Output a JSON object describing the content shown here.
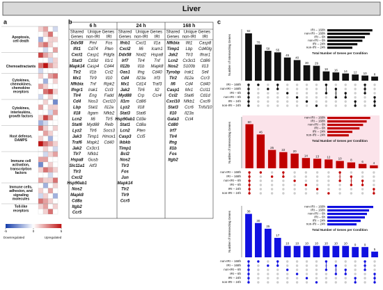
{
  "header": {
    "title": "Liver"
  },
  "panels": {
    "a": "a",
    "b": "b",
    "c": "c"
  },
  "heatmap": {
    "groups": [
      {
        "label": "Apoptosis, cell death",
        "rows": 5
      },
      {
        "label": "Chemoattractants",
        "rows": 4
      },
      {
        "label": "Cytokines, chemokines, chemokine receptors",
        "rows": 5
      },
      {
        "label": "Cytokines, interleukins, growth factors",
        "rows": 5
      },
      {
        "label": "Host defense, DAMPS",
        "rows": 5
      },
      {
        "label": "Immune cell activation, transcription factors",
        "rows": 6
      },
      {
        "label": "Immune cells, adhesion, and signaling molecules",
        "rows": 4
      },
      {
        "label": "Toll-like receptors",
        "rows": 2
      }
    ],
    "values": [
      [
        1,
        2,
        0,
        -1
      ],
      [
        0,
        1,
        3,
        0
      ],
      [
        -2,
        0,
        1,
        1
      ],
      [
        2,
        3,
        1,
        0
      ],
      [
        0,
        -1,
        0,
        2
      ],
      [
        4,
        2,
        1,
        0
      ],
      [
        0,
        0,
        -1,
        1
      ],
      [
        3,
        5,
        2,
        1
      ],
      [
        -1,
        0,
        0,
        0
      ],
      [
        1,
        0,
        2,
        3
      ],
      [
        0,
        -2,
        0,
        1
      ],
      [
        2,
        1,
        0,
        0
      ],
      [
        0,
        3,
        4,
        1
      ],
      [
        -1,
        0,
        1,
        0
      ],
      [
        0,
        1,
        0,
        -3
      ],
      [
        2,
        0,
        1,
        1
      ],
      [
        0,
        0,
        -1,
        2
      ],
      [
        1,
        4,
        2,
        0
      ],
      [
        -2,
        -1,
        0,
        0
      ],
      [
        3,
        1,
        0,
        1
      ],
      [
        0,
        2,
        1,
        0
      ],
      [
        1,
        0,
        -2,
        0
      ],
      [
        5,
        3,
        2,
        1
      ],
      [
        0,
        1,
        0,
        -1
      ],
      [
        0,
        -1,
        1,
        2
      ],
      [
        2,
        2,
        0,
        0
      ],
      [
        -3,
        0,
        1,
        0
      ],
      [
        1,
        3,
        2,
        1
      ],
      [
        0,
        0,
        -1,
        0
      ],
      [
        2,
        1,
        1,
        3
      ],
      [
        0,
        -2,
        0,
        1
      ],
      [
        1,
        0,
        2,
        0
      ],
      [
        -1,
        1,
        0,
        -2
      ],
      [
        3,
        2,
        1,
        0
      ],
      [
        1,
        2,
        0,
        1
      ],
      [
        0,
        1,
        3,
        0
      ]
    ],
    "colorbar": {
      "range": [
        -5,
        5
      ],
      "ticks": [
        -5,
        0,
        5
      ]
    },
    "low_label": "Downregulated",
    "high_label": "Upregulated"
  },
  "table": {
    "timepoints": [
      "6 h",
      "24 h",
      "168 h"
    ],
    "sub1": [
      "Shared",
      "Unique Genes"
    ],
    "sub2": [
      "Genes",
      "non-IRI",
      "IRI"
    ],
    "columns": [
      [
        "Ddx58",
        "Ifit1",
        "Cxcl1",
        "Stat3",
        "Mapk14",
        "Tlr2",
        "Mx1",
        "Nfkbia",
        "Ifngr1",
        "Tlr4",
        "Cd4",
        "Lbp",
        "Il18",
        "Lcn2",
        "Stat6",
        "Lyz2",
        "Jak3",
        "Traf6",
        "Jak2",
        "Tlr7",
        "Hspa8",
        "Slc11a1",
        "Tlr3",
        "Cxcl2",
        "Hsp90ab1",
        "Nos2",
        "Mapk8",
        "Cd8a",
        "Itgb2",
        "Ccr5"
      ],
      [
        "Pml",
        "Cd74",
        "Casp1",
        "Cd3d",
        "Casp4",
        "Il1b",
        "Tlr9",
        "Tnf",
        "Irak1",
        "Eng",
        "Nos3",
        "Stat1",
        "Itgam",
        "Il6",
        "Myd88",
        "Tlr6",
        "Timp1",
        "Mapk1",
        "Cx3cr1",
        "Nfkb1",
        "Gusb",
        "Atf3"
      ],
      [
        "Fos",
        "Pten",
        "Pdgfa",
        "Il1r1",
        "Cd44",
        "Ccl2",
        "Il10",
        "Ripk2",
        "Ccl3",
        "Fadd",
        "Cxcl10",
        "Il12a",
        "Nfkb2",
        "Tlr5",
        "Relb",
        "Socs3",
        "Hmox1",
        "Cd40"
      ],
      [
        "Ifnb1",
        "Cxcl2",
        "Ddx58",
        "Irf7",
        "Il12b",
        "Oas1",
        "Cd4",
        "Mx1",
        "Jak2",
        "Myd88",
        "Il1rn",
        "Lyz2",
        "Stat3",
        "Hsp90ab1",
        "Stat1",
        "Lcn2",
        "Casp3",
        "Ikbkb",
        "Timp1",
        "Bcl2",
        "Nos2",
        "Tlr3",
        "Fos",
        "Jun",
        "Mapk14",
        "Tlr2",
        "Tlr9",
        "Ccr5"
      ],
      [
        "Cxcl1",
        "Il6",
        "Nod2",
        "Tlr4",
        "Il1b",
        "Ifng",
        "Il23a",
        "Cd14",
        "Tlr6",
        "Crp",
        "Cd86",
        "Il18",
        "Stat6",
        "Cd3e",
        "Cd8a",
        "Pten",
        "Ccl5"
      ],
      [
        "Il1a",
        "Icam1",
        "Hspa8",
        "Tnf",
        "Mapk8",
        "Cd40",
        "Irf3",
        "Traf3",
        "Il2",
        "Ccr4"
      ],
      [
        "Nfkbia",
        "Timp1",
        "Jak2",
        "Lcn2",
        "Nos2",
        "Tyrobp",
        "Tlr2",
        "Il6",
        "Casp1",
        "Ccl2",
        "Cxcl10",
        "Stat3",
        "Il10",
        "Gata3",
        "Cd80",
        "Irf7",
        "Tlr4",
        "Ifng",
        "Il1b",
        "Fos",
        "Itgb2"
      ],
      [
        "Ifit1",
        "Lbp",
        "Tlr3",
        "Cx3cl1",
        "S100b",
        "Irak1",
        "Il12a",
        "Cd4",
        "Mx1",
        "Stat6",
        "Nfkb1",
        "Ccr6",
        "Il23a",
        "Ccl4"
      ],
      [
        "Casp8",
        "Cd40lg",
        "Ifnar1",
        "Cd86",
        "Il13",
        "Sell",
        "Ccr3",
        "Cd40",
        "Ccl11",
        "Cd1d",
        "Cxcl9",
        "Tnfsf10"
      ]
    ]
  },
  "upset": {
    "y_label": "Number of Intersecting Genes",
    "size_label": "Total Number of Genes per Condition",
    "plots": [
      {
        "color": "#111111",
        "set_names": [
          "IRI – 168h",
          "non-IRI – 168h",
          "IRI – 6h",
          "non-IRI – 6h",
          "IRI – 24h",
          "non-IRI – 24h"
        ],
        "set_sizes": [
          180,
          170,
          150,
          140,
          120,
          100
        ],
        "size_lim": [
          0,
          200
        ],
        "values": [
          92,
          70,
          58,
          55,
          45,
          40,
          30,
          29,
          18,
          16,
          14,
          12,
          10,
          8
        ],
        "ylim": [
          0,
          100
        ],
        "sets": [
          [
            0,
            1,
            2,
            3,
            4,
            5
          ],
          [
            0
          ],
          [
            1
          ],
          [
            0,
            1
          ],
          [
            2
          ],
          [
            3
          ],
          [
            4
          ],
          [
            5
          ],
          [
            0,
            2
          ],
          [
            1,
            3
          ],
          [
            2,
            3
          ],
          [
            4,
            5
          ],
          [
            0,
            1,
            2
          ],
          [
            3,
            4,
            5
          ]
        ]
      },
      {
        "color": "#c00000",
        "set_names": [
          "non-IRI – 168h",
          "IRI – 168h",
          "non-IRI – 6h",
          "IRI – 6h",
          "IRI – 24h",
          "non-IRI – 24h"
        ],
        "set_sizes": [
          120,
          110,
          100,
          90,
          70,
          60
        ],
        "size_lim": [
          0,
          140
        ],
        "values": [
          60,
          46,
          25,
          22,
          20,
          14,
          13,
          12,
          10,
          8,
          6,
          4
        ],
        "ylim": [
          0,
          70
        ],
        "sets": [
          [
            0,
            1,
            2,
            3,
            4,
            5
          ],
          [
            0
          ],
          [
            1
          ],
          [
            0,
            1
          ],
          [
            2
          ],
          [
            3
          ],
          [
            4
          ],
          [
            5
          ],
          [
            0,
            2
          ],
          [
            1,
            3
          ],
          [
            2,
            3
          ],
          [
            4,
            5
          ]
        ]
      },
      {
        "color": "#1010e0",
        "set_names": [
          "non-IRI – 168h",
          "IRI – 168h",
          "non-IRI – 6h",
          "IRI – 6h",
          "IRI – 24h",
          "non-IRI – 24h"
        ],
        "set_sizes": [
          110,
          100,
          95,
          90,
          80,
          70
        ],
        "size_lim": [
          0,
          120
        ],
        "values": [
          38,
          30,
          25,
          17,
          10,
          10,
          10,
          10,
          10,
          10,
          10,
          9,
          9,
          5
        ],
        "ylim": [
          0,
          45
        ],
        "sets": [
          [
            0,
            1,
            2,
            3,
            4,
            5
          ],
          [
            0
          ],
          [
            1
          ],
          [
            0,
            1
          ],
          [
            2
          ],
          [
            3
          ],
          [
            4
          ],
          [
            5
          ],
          [
            0,
            2
          ],
          [
            1,
            3
          ],
          [
            2,
            3
          ],
          [
            4,
            5
          ],
          [
            0,
            1,
            2
          ],
          [
            3,
            4,
            5
          ]
        ]
      }
    ]
  }
}
